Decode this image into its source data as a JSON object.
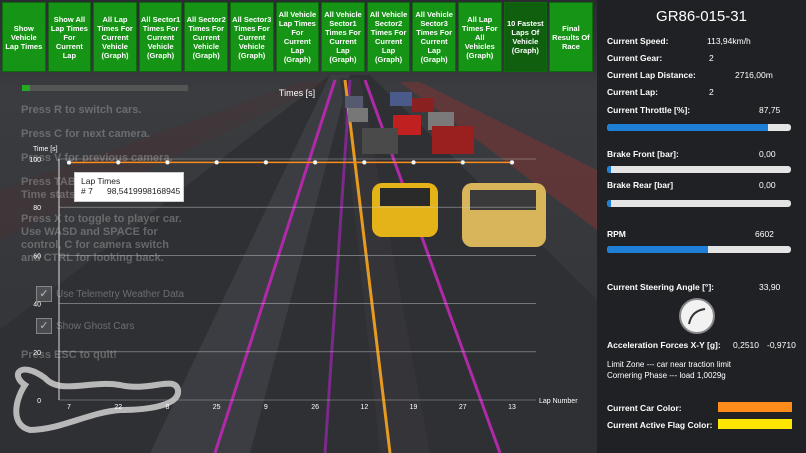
{
  "buttons": [
    {
      "label": "Show Vehicle Lap Times"
    },
    {
      "label": "Show All Lap Times For Current Lap"
    },
    {
      "label": "All Lap Times For Current Vehicle (Graph)"
    },
    {
      "label": "All Sector1 Times For Current Vehicle (Graph)"
    },
    {
      "label": "All Sector2 Times For Current Vehicle (Graph)"
    },
    {
      "label": "All Sector3 Times For Current Vehicle (Graph)"
    },
    {
      "label": "All Vehicle Lap Times For Current Lap (Graph)"
    },
    {
      "label": "All Vehicle Sector1 Times For Current Lap (Graph)"
    },
    {
      "label": "All Vehicle Sector2 Times For Current Lap (Graph)"
    },
    {
      "label": "All Vehicle Sector3 Times For Current Lap (Graph)"
    },
    {
      "label": "All Lap Times For All Vehicles (Graph)"
    },
    {
      "label": "10 Fastest Laps Of Vehicle (Graph)"
    },
    {
      "label": "Final Results Of Race"
    }
  ],
  "overlay": {
    "lines": [
      "Press R to switch cars.",
      "Press C for next camera.",
      "Press V for previous camera.",
      "Press TAB ...",
      "Time stats ...",
      "Press X to toggle to player car.",
      "Use WASD and SPACE for",
      "control, C for camera switch",
      "and CTRL for looking back.",
      "Press ESC to quit!"
    ],
    "telemetry_weather": "Use Telemetry Weather Data",
    "ghost_cars": "Show Ghost Cars"
  },
  "top_progress": 0.05,
  "chart_data": {
    "type": "line",
    "title": "Times [s]",
    "ylabel": "Time [s]",
    "xlabel": "Lap Number",
    "categories": [
      "7",
      "22",
      "8",
      "25",
      "9",
      "26",
      "12",
      "19",
      "27",
      "13"
    ],
    "values": [
      98.54,
      98.6,
      98.6,
      98.6,
      98.6,
      98.6,
      98.6,
      98.6,
      98.6,
      98.6
    ],
    "yticks": [
      0,
      20,
      40,
      60,
      80,
      100
    ],
    "ylim": [
      0,
      100
    ],
    "color": "#ff8c1a"
  },
  "tooltip": {
    "title": "Lap Times",
    "line": "# 7      98,5419998168945"
  },
  "sidebar": {
    "car_id": "GR86-015-31",
    "speed_label": "Current Speed:",
    "speed_value": "113,94km/h",
    "gear_label": "Current Gear:",
    "gear_value": "2",
    "lap_distance_label": "Current Lap Distance:",
    "lap_distance_value": "2716,00m",
    "lap_label": "Current Lap:",
    "lap_value": "2",
    "throttle_label": "Current Throttle [%]:",
    "throttle_value": "87,75",
    "throttle_fraction": 0.8775,
    "brake_front_label": "Brake Front [bar]:",
    "brake_front_value": "0,00",
    "brake_front_fraction": 0.0,
    "brake_rear_label": "Brake Rear [bar]",
    "brake_rear_value": "0,00",
    "brake_rear_fraction": 0.0,
    "rpm_label": "RPM",
    "rpm_value": "6602",
    "rpm_fraction": 0.55,
    "steering_label": "Current Steering Angle [°]:",
    "steering_value": "33,90",
    "accel_label": "Acceleration Forces X-Y [g]:",
    "accel_x": "0,2510",
    "accel_y": "-0,9710",
    "limit_zone": "Limit Zone --- car near traction limit",
    "cornering": "Cornering Phase --- load 1,0029g",
    "car_color_label": "Current Car Color:",
    "car_color": "#ff8c1a",
    "flag_color_label": "Current Active Flag Color:",
    "flag_color": "#ffe600"
  }
}
